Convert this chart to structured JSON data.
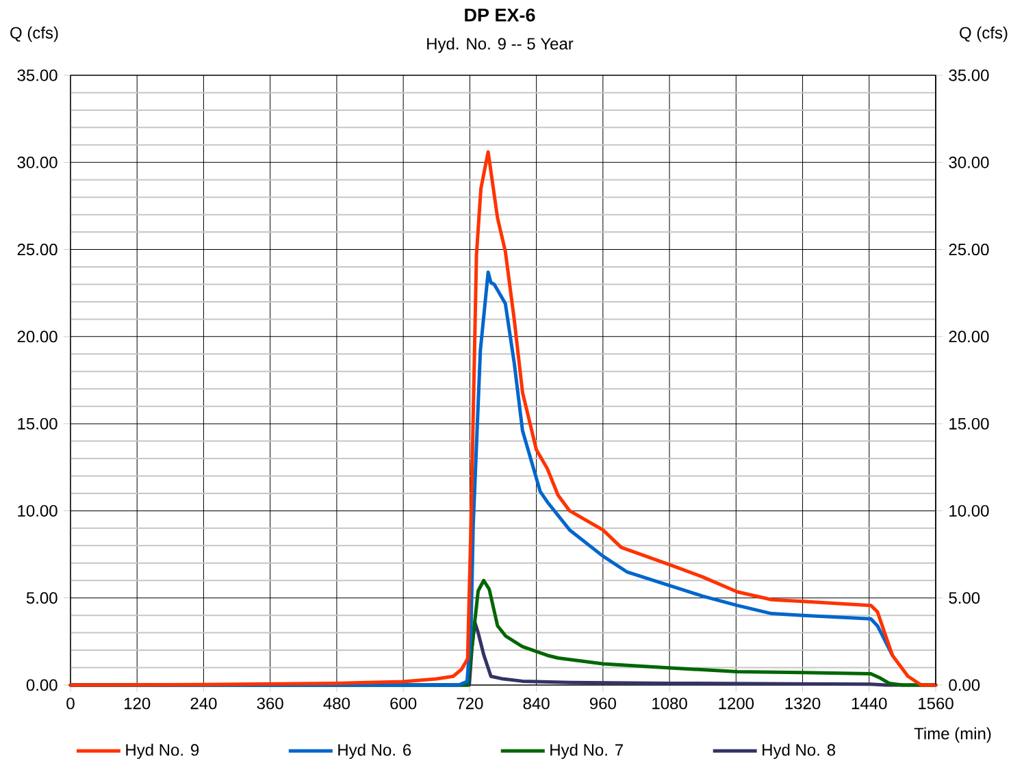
{
  "chart_data": {
    "type": "line",
    "title": "DP EX-6",
    "subtitle": "Hyd. No. 9 -- 5 Year",
    "xlabel": "Time (min)",
    "ylabel": "Q (cfs)",
    "y2label": "Q (cfs)",
    "xlim": [
      0,
      1560
    ],
    "xticks": [
      0,
      120,
      240,
      360,
      480,
      600,
      720,
      840,
      960,
      1080,
      1200,
      1320,
      1440,
      1560
    ],
    "ylim": [
      0,
      35
    ],
    "yticks": [
      {
        "value": 0,
        "label": "0.00"
      },
      {
        "value": 5,
        "label": "5.00"
      },
      {
        "value": 10,
        "label": "10.00"
      },
      {
        "value": 15,
        "label": "15.00"
      },
      {
        "value": 20,
        "label": "20.00"
      },
      {
        "value": 25,
        "label": "25.00"
      },
      {
        "value": 30,
        "label": "30.00"
      },
      {
        "value": 35,
        "label": "35.00"
      }
    ],
    "y2lim": [
      0,
      35
    ],
    "y2ticks": [
      {
        "value": 0,
        "label": "0.00"
      },
      {
        "value": 5,
        "label": "5.00"
      },
      {
        "value": 10,
        "label": "10.00"
      },
      {
        "value": 15,
        "label": "15.00"
      },
      {
        "value": 20,
        "label": "20.00"
      },
      {
        "value": 25,
        "label": "25.00"
      },
      {
        "value": 30,
        "label": "30.00"
      },
      {
        "value": 35,
        "label": "35.00"
      }
    ],
    "grid": true,
    "legend": "bottom",
    "series": [
      {
        "name": "Hyd No. 9",
        "color": "#ff3300",
        "x": [
          0,
          240,
          480,
          600,
          660,
          690,
          705,
          716,
          722,
          732,
          740,
          753,
          770,
          784,
          800,
          815,
          840,
          860,
          879,
          900,
          960,
          993,
          1081,
          1140,
          1202,
          1264,
          1320,
          1443,
          1455,
          1482,
          1510,
          1534,
          1560
        ],
        "values": [
          0,
          0.03,
          0.1,
          0.2,
          0.35,
          0.5,
          0.9,
          1.5,
          9.1,
          24.7,
          28.5,
          30.6,
          26.8,
          24.9,
          21.0,
          16.8,
          13.5,
          12.4,
          10.9,
          10.0,
          8.9,
          7.9,
          6.9,
          6.2,
          5.35,
          4.9,
          4.8,
          4.57,
          4.2,
          1.7,
          0.5,
          0,
          0
        ]
      },
      {
        "name": "Hyd No. 6",
        "color": "#0066cc",
        "x": [
          0,
          600,
          700,
          715,
          722,
          726,
          739,
          753,
          758,
          764,
          784,
          800,
          815,
          847,
          860,
          900,
          960,
          1003,
          1081,
          1140,
          1202,
          1264,
          1320,
          1443,
          1455,
          1482
        ],
        "values": [
          0,
          0,
          0,
          0.2,
          3.0,
          9.1,
          19.2,
          23.7,
          23.1,
          23.0,
          21.9,
          18.5,
          14.6,
          11.1,
          10.5,
          8.9,
          7.4,
          6.5,
          5.7,
          5.1,
          4.57,
          4.1,
          4.0,
          3.8,
          3.4,
          1.7
        ]
      },
      {
        "name": "Hyd No. 7",
        "color": "#006600",
        "x": [
          0,
          716,
          725,
          735,
          745,
          755,
          770,
          785,
          815,
          860,
          879,
          960,
          1081,
          1202,
          1320,
          1443,
          1460,
          1476,
          1500,
          1560
        ],
        "values": [
          0,
          0,
          2.5,
          5.4,
          6.0,
          5.5,
          3.4,
          2.8,
          2.2,
          1.7,
          1.55,
          1.22,
          0.98,
          0.77,
          0.72,
          0.65,
          0.4,
          0.1,
          0,
          0
        ]
      },
      {
        "name": "Hyd No. 8",
        "color": "#333366",
        "x": [
          0,
          719,
          724,
          729,
          735,
          745,
          758,
          780,
          815,
          900,
          1080,
          1300,
          1443,
          1470,
          1560
        ],
        "values": [
          0,
          0,
          2.2,
          3.6,
          3.0,
          1.75,
          0.5,
          0.35,
          0.22,
          0.15,
          0.1,
          0.07,
          0.05,
          0,
          0
        ]
      }
    ]
  }
}
